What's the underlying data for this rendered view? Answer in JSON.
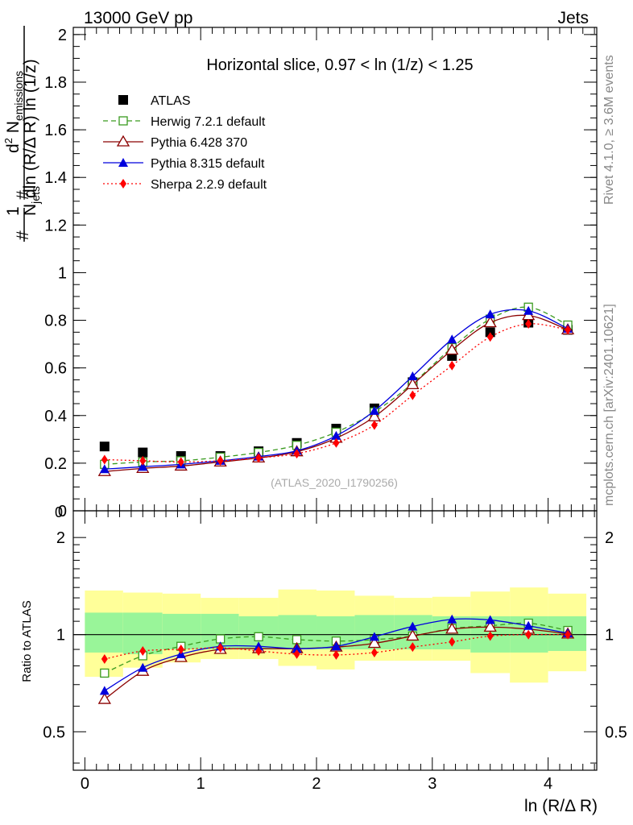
{
  "header": {
    "energy_label": "13000 GeV pp",
    "process_label": "Jets",
    "side_label_rivet": "Rivet 4.1.0, ≥ 3.6M events",
    "side_label_mcplots": "mcplots.cern.ch [arXiv:2401.10621]",
    "analysis_id": "(ATLAS_2020_I1790256)"
  },
  "chart_data": [
    {
      "panel": "main",
      "type": "line",
      "title": "Horizontal slice, 0.97 < ln (1/z) < 1.25",
      "xlabel": "ln (R/Δ R)",
      "ylabel": "1/N_jets d²N_emissions / dln (R/Δ R) ln (1/z)",
      "xlim": [
        -0.1,
        4.42
      ],
      "ylim": [
        0,
        2.03
      ],
      "y_ticks": [
        "0",
        "0.2",
        "0.4",
        "0.6",
        "0.8",
        "1",
        "1.2",
        "1.4",
        "1.6",
        "1.8",
        "2"
      ],
      "x": [
        0.17,
        0.5,
        0.83,
        1.17,
        1.5,
        1.83,
        2.17,
        2.5,
        2.83,
        3.17,
        3.5,
        3.83,
        4.17
      ],
      "series": [
        {
          "name": "ATLAS",
          "color": "#000000",
          "marker": "square-filled",
          "values": [
            0.27,
            0.245,
            0.23,
            0.23,
            0.25,
            0.285,
            0.345,
            0.43,
            0.54,
            0.65,
            0.75,
            0.79,
            0.76
          ]
        },
        {
          "name": "Herwig 7.2.1 default",
          "color": "#3a9a1f",
          "marker": "square-open",
          "line": "dashed",
          "values": [
            0.195,
            0.205,
            0.21,
            0.225,
            0.245,
            0.275,
            0.33,
            0.415,
            0.535,
            0.685,
            0.805,
            0.855,
            0.78
          ]
        },
        {
          "name": "Pythia 6.428 370",
          "color": "#8b0000",
          "marker": "triangle-open",
          "line": "solid",
          "values": [
            0.165,
            0.178,
            0.188,
            0.205,
            0.222,
            0.248,
            0.305,
            0.395,
            0.53,
            0.675,
            0.79,
            0.82,
            0.76
          ]
        },
        {
          "name": "Pythia 8.315 default",
          "color": "#0000dd",
          "marker": "triangle-filled",
          "line": "solid",
          "values": [
            0.175,
            0.185,
            0.195,
            0.21,
            0.228,
            0.252,
            0.315,
            0.42,
            0.565,
            0.72,
            0.825,
            0.84,
            0.765
          ]
        },
        {
          "name": "Sherpa 2.2.9 default",
          "color": "#ff0000",
          "marker": "diamond-filled",
          "line": "dotted",
          "values": [
            0.215,
            0.21,
            0.205,
            0.21,
            0.222,
            0.24,
            0.285,
            0.36,
            0.485,
            0.61,
            0.73,
            0.785,
            0.76
          ]
        }
      ]
    },
    {
      "panel": "ratio",
      "type": "line",
      "ylabel": "Ratio to ATLAS",
      "xlabel": "ln (R/Δ R)",
      "xlim": [
        -0.1,
        4.42
      ],
      "ylim": [
        0.38,
        2.42
      ],
      "y_scale": "log",
      "y_ticks": [
        "0.5",
        "1",
        "2"
      ],
      "x_ticks": [
        "0",
        "1",
        "2",
        "3",
        "4"
      ],
      "bin_edges": [
        0.0,
        0.33,
        0.67,
        1.0,
        1.33,
        1.67,
        2.0,
        2.33,
        2.67,
        3.0,
        3.33,
        3.67,
        4.0,
        4.33
      ],
      "band_inner_lo": [
        0.88,
        0.87,
        0.9,
        0.9,
        0.9,
        0.9,
        0.9,
        0.9,
        0.9,
        0.9,
        0.88,
        0.88,
        0.89
      ],
      "band_inner_hi": [
        1.17,
        1.17,
        1.16,
        1.16,
        1.14,
        1.15,
        1.14,
        1.15,
        1.15,
        1.14,
        1.14,
        1.14,
        1.14
      ],
      "band_outer_lo": [
        0.74,
        0.79,
        0.82,
        0.84,
        0.84,
        0.8,
        0.78,
        0.83,
        0.83,
        0.83,
        0.76,
        0.71,
        0.77
      ],
      "band_outer_hi": [
        1.37,
        1.35,
        1.34,
        1.3,
        1.3,
        1.38,
        1.37,
        1.32,
        1.3,
        1.31,
        1.36,
        1.4,
        1.34
      ],
      "x": [
        0.17,
        0.5,
        0.83,
        1.17,
        1.5,
        1.83,
        2.17,
        2.5,
        2.83,
        3.17,
        3.5,
        3.83,
        4.17
      ],
      "series": [
        {
          "name": "Herwig 7.2.1 default",
          "color": "#3a9a1f",
          "marker": "square-open",
          "line": "dashed",
          "values": [
            0.76,
            0.86,
            0.92,
            0.97,
            0.985,
            0.965,
            0.955,
            0.965,
            0.99,
            1.045,
            1.065,
            1.085,
            1.03
          ]
        },
        {
          "name": "Pythia 6.428 370",
          "color": "#8b0000",
          "marker": "triangle-open",
          "line": "solid",
          "values": [
            0.63,
            0.77,
            0.85,
            0.9,
            0.905,
            0.905,
            0.915,
            0.94,
            0.99,
            1.04,
            1.055,
            1.04,
            1.005
          ]
        },
        {
          "name": "Pythia 8.315 default",
          "color": "#0000dd",
          "marker": "triangle-filled",
          "line": "solid",
          "values": [
            0.67,
            0.79,
            0.87,
            0.92,
            0.92,
            0.905,
            0.92,
            0.985,
            1.06,
            1.115,
            1.11,
            1.065,
            1.01
          ]
        },
        {
          "name": "Sherpa 2.2.9 default",
          "color": "#ff0000",
          "marker": "diamond-filled",
          "line": "dotted",
          "values": [
            0.84,
            0.89,
            0.9,
            0.91,
            0.89,
            0.87,
            0.865,
            0.88,
            0.915,
            0.95,
            0.99,
            1.0,
            1.0
          ]
        }
      ]
    }
  ]
}
